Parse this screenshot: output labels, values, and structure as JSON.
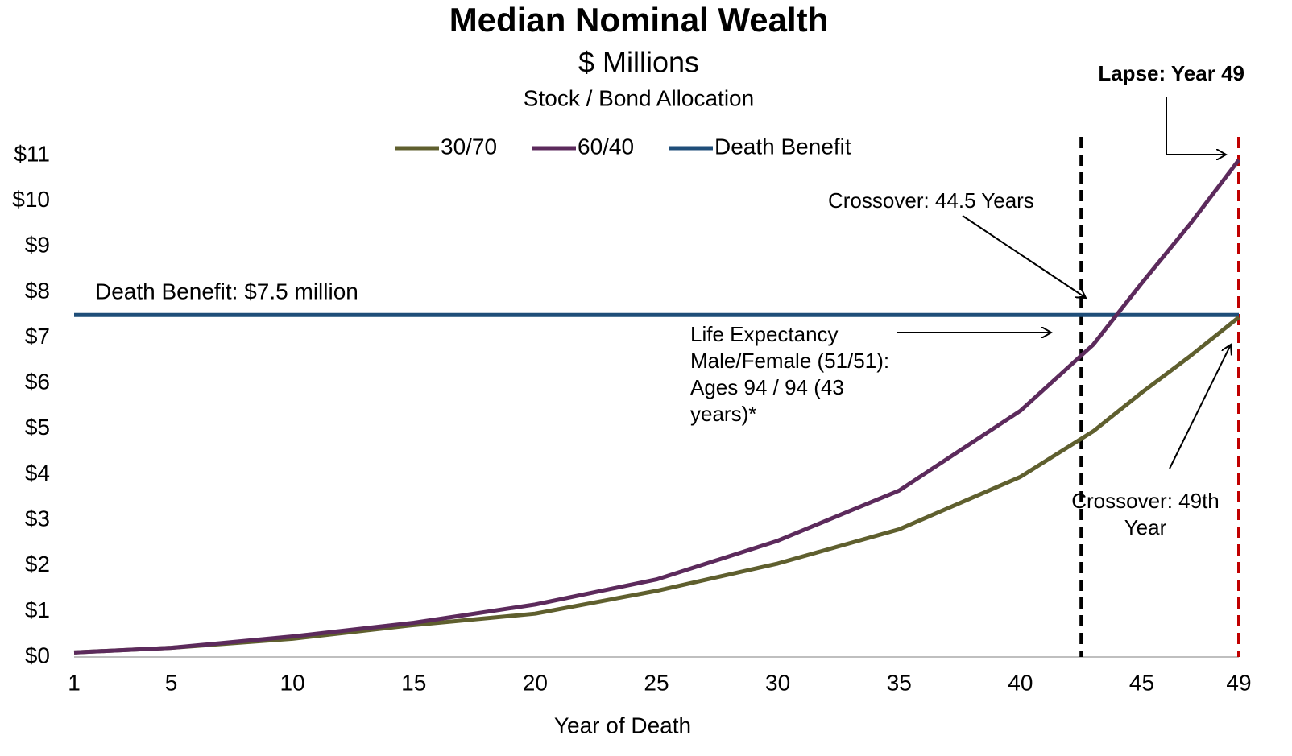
{
  "chart_data": {
    "type": "line",
    "title": "Median Nominal Wealth",
    "subtitle": "$ Millions",
    "subtitle2": "Stock / Bond Allocation",
    "x_label": "Year of Death",
    "x": [
      1,
      5,
      10,
      15,
      20,
      25,
      30,
      35,
      40,
      43,
      45,
      47,
      49
    ],
    "series": [
      {
        "name": "30/70",
        "color": "#5f5f2e",
        "values": [
          0.1,
          0.2,
          0.4,
          0.7,
          0.95,
          1.45,
          2.05,
          2.8,
          3.95,
          4.95,
          5.8,
          6.6,
          7.45
        ]
      },
      {
        "name": "60/40",
        "color": "#5c2a5c",
        "values": [
          0.1,
          0.2,
          0.45,
          0.75,
          1.15,
          1.7,
          2.55,
          3.65,
          5.4,
          6.85,
          8.2,
          9.5,
          10.9
        ]
      },
      {
        "name": "Death Benefit",
        "color": "#1f4e79",
        "values": [
          7.5,
          7.5,
          7.5,
          7.5,
          7.5,
          7.5,
          7.5,
          7.5,
          7.5,
          7.5,
          7.5,
          7.5,
          7.5
        ]
      }
    ],
    "xlim": [
      1,
      49
    ],
    "xticks": [
      1,
      5,
      10,
      15,
      20,
      25,
      30,
      35,
      40,
      45,
      49
    ],
    "ylim": [
      0,
      11
    ],
    "yticks": [
      {
        "value": 0,
        "label": "$0"
      },
      {
        "value": 1,
        "label": "$1"
      },
      {
        "value": 2,
        "label": "$2"
      },
      {
        "value": 3,
        "label": "$3"
      },
      {
        "value": 4,
        "label": "$4"
      },
      {
        "value": 5,
        "label": "$5"
      },
      {
        "value": 6,
        "label": "$6"
      },
      {
        "value": 7,
        "label": "$7"
      },
      {
        "value": 8,
        "label": "$8"
      },
      {
        "value": 9,
        "label": "$9"
      },
      {
        "value": 10,
        "label": "$10"
      },
      {
        "value": 11,
        "label": "$11"
      }
    ],
    "reference_lines": [
      {
        "x": 42.5,
        "color": "#000000"
      },
      {
        "x": 49,
        "color": "#c00000"
      }
    ],
    "legend": "top",
    "annotations": [
      {
        "text": [
          "Death Benefit: $7.5 million"
        ]
      },
      {
        "text": [
          "Crossover: 44.5 Years"
        ]
      },
      {
        "text": [
          "Life Expectancy",
          "Male/Female (51/51):",
          "Ages 94 / 94 (43",
          "years)*"
        ]
      },
      {
        "text": [
          "Lapse: Year 49"
        ]
      },
      {
        "text": [
          "Crossover: 49th",
          "Year"
        ]
      }
    ]
  }
}
